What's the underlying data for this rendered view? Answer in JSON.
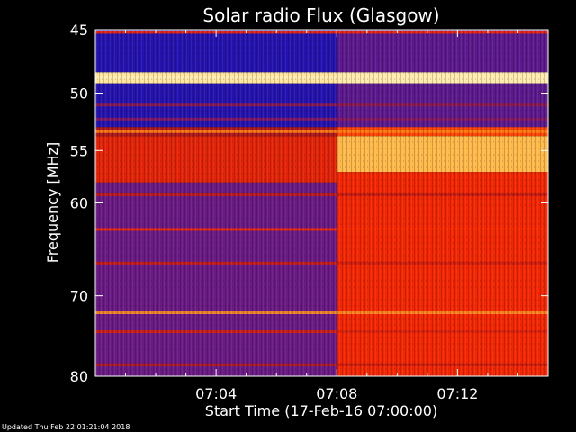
{
  "chart_data": {
    "type": "heatmap",
    "title": "Solar radio Flux (Glasgow)",
    "xlabel": "Start Time (17-Feb-16 07:00:00)",
    "ylabel": "Frequency [MHz]",
    "x_axis": {
      "unit": "minutes after 07:00:00",
      "range": [
        0,
        15
      ],
      "tick_values": [
        4,
        8,
        12
      ],
      "tick_labels": [
        "07:04",
        "07:08",
        "07:12"
      ]
    },
    "y_axis": {
      "unit": "MHz",
      "scale": "log",
      "range": [
        45,
        80
      ],
      "direction": "inverted",
      "tick_values": [
        45,
        50,
        55,
        60,
        70,
        80
      ],
      "tick_labels": [
        "45",
        "50",
        "55",
        "60",
        "70",
        "80"
      ]
    },
    "event_onset_minutes": 8.0,
    "colormap": [
      "#0b0bb8",
      "#3a1aa8",
      "#7a1a78",
      "#b01818",
      "#ff2a00",
      "#ff7a10",
      "#ffd060",
      "#fff2c0"
    ],
    "background_level": {
      "before_onset": [
        {
          "from_mhz": 45.0,
          "to_mhz": 48.3,
          "level": 0.08
        },
        {
          "from_mhz": 48.3,
          "to_mhz": 49.2,
          "level": 0.95
        },
        {
          "from_mhz": 49.2,
          "to_mhz": 52.9,
          "level": 0.08
        },
        {
          "from_mhz": 52.9,
          "to_mhz": 53.7,
          "level": 0.42
        },
        {
          "from_mhz": 53.7,
          "to_mhz": 58.0,
          "level": 0.52
        },
        {
          "from_mhz": 58.0,
          "to_mhz": 80.0,
          "level": 0.25
        }
      ],
      "after_onset": [
        {
          "from_mhz": 45.0,
          "to_mhz": 48.3,
          "level": 0.22
        },
        {
          "from_mhz": 48.3,
          "to_mhz": 49.2,
          "level": 0.97
        },
        {
          "from_mhz": 49.2,
          "to_mhz": 52.9,
          "level": 0.22
        },
        {
          "from_mhz": 52.9,
          "to_mhz": 53.7,
          "level": 0.62
        },
        {
          "from_mhz": 53.7,
          "to_mhz": 57.0,
          "level": 0.82
        },
        {
          "from_mhz": 57.0,
          "to_mhz": 80.0,
          "level": 0.55
        }
      ]
    },
    "persistent_lines_mhz": [
      {
        "mhz": 45.2,
        "level": 0.55
      },
      {
        "mhz": 48.75,
        "level": 0.98
      },
      {
        "mhz": 51.0,
        "level": 0.35
      },
      {
        "mhz": 52.2,
        "level": 0.32
      },
      {
        "mhz": 53.3,
        "level": 0.72
      },
      {
        "mhz": 59.2,
        "level": 0.45
      },
      {
        "mhz": 62.7,
        "level": 0.58
      },
      {
        "mhz": 66.3,
        "level": 0.48
      },
      {
        "mhz": 72.0,
        "level": 0.75
      },
      {
        "mhz": 74.3,
        "level": 0.5
      },
      {
        "mhz": 78.5,
        "level": 0.45
      }
    ]
  },
  "footer": {
    "updated": "Updated Thu Feb 22 01:21:04 2018"
  }
}
